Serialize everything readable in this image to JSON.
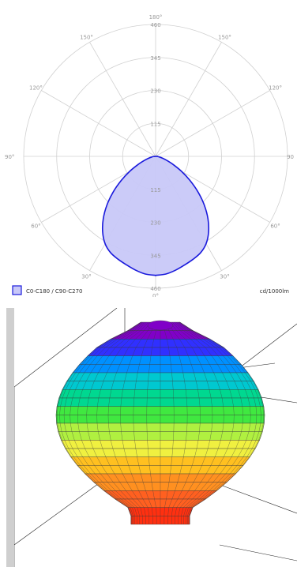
{
  "chart_data": {
    "type": "polar",
    "angle_labels": {
      "top": "180°",
      "bottom": "0°",
      "upper_left": "150°",
      "upper_right": "150°",
      "mid_upper_left": "120°",
      "mid_upper_right": "120°",
      "left": "90°",
      "right": "90",
      "mid_lower_left": "60°",
      "mid_lower_right": "60°",
      "lower_left": "30°",
      "lower_right": "30°"
    },
    "radial_ticks": [
      115,
      230,
      345,
      460
    ],
    "rmax": 460,
    "series": [
      {
        "name": "C0-C180 / C90-C270",
        "color": "#1a1adc",
        "fill": "#c8c8f8",
        "angles_deg": [
          0,
          5,
          10,
          15,
          20,
          25,
          30,
          35,
          40,
          45,
          50,
          55,
          60,
          65,
          70,
          75,
          80,
          85,
          90
        ],
        "values": [
          415,
          412,
          403,
          392,
          382,
          371,
          352,
          322,
          284,
          240,
          193,
          146,
          104,
          68,
          42,
          25,
          14,
          8,
          5
        ]
      }
    ],
    "unit_label": "cd/1000lm"
  },
  "render": {
    "colors": [
      "#8000c8",
      "#3030ff",
      "#0090ff",
      "#00c8d0",
      "#00d890",
      "#40e840",
      "#b0f040",
      "#f0f040",
      "#ffc020",
      "#ff9020",
      "#ff6020",
      "#ff3010"
    ]
  }
}
